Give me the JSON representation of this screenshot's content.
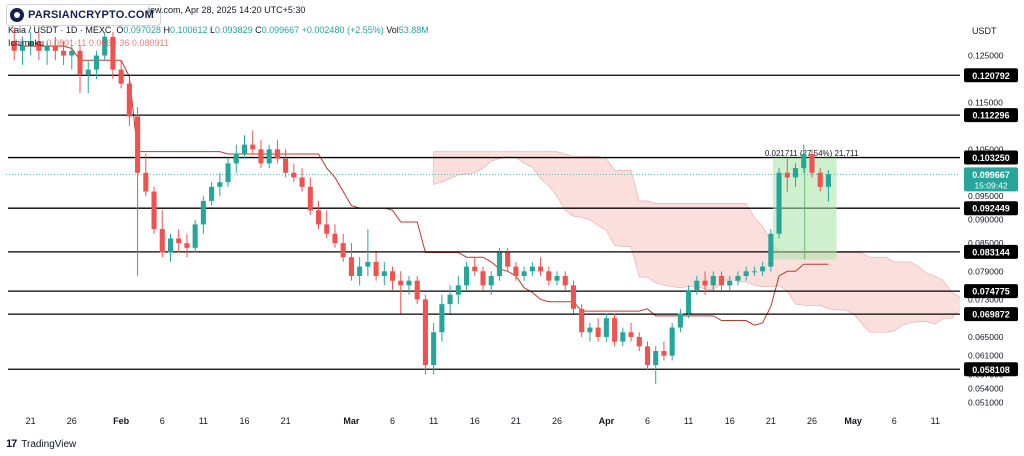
{
  "watermark": "PARSIANCRYPTO.COM",
  "header": {
    "published": "Apr 28, 2025 14:20 UTC+5:30",
    "site_fragment": "iew.com,",
    "symbol": "Kaia / USDT · 1D · MEXC",
    "ohlc": {
      "o_label": "O",
      "o": "0.097028",
      "h_label": "H",
      "h": "0.100612",
      "l_label": "L",
      "l": "0.093829",
      "c_label": "C",
      "c": "0.099667",
      "change": "+0.002480 (+2.55%)"
    },
    "vol_label": "Vol",
    "vol": "53.88M",
    "indicator": "Ichimoku",
    "indicator_values": "0.0801·11   0.0860·36   0.080911"
  },
  "axis": {
    "unit": "USDT",
    "y_ticks": [
      "0.125000",
      "0.115000",
      "0.105000",
      "0.095000",
      "0.090000",
      "0.085000",
      "0.079000",
      "0.073000",
      "0.065000",
      "0.061000",
      "0.057000",
      "0.054000",
      "0.051000"
    ],
    "x_ticks": [
      "21",
      "26",
      "Feb",
      "6",
      "11",
      "16",
      "21",
      "Mar",
      "6",
      "11",
      "16",
      "21",
      "26",
      "Apr",
      "6",
      "11",
      "16",
      "21",
      "26",
      "May",
      "6",
      "11"
    ]
  },
  "levels": [
    "0.120792",
    "0.112296",
    "0.103250",
    "0.092449",
    "0.083144",
    "0.074775",
    "0.069872",
    "0.058108"
  ],
  "current_price": "0.099667",
  "countdown": "15:09:42",
  "measure_label": "0.021711 (27.54%) 21,711",
  "footer": {
    "brand": "TradingView"
  },
  "colors": {
    "up": "#26a69a",
    "down": "#ef5350",
    "level": "#000000",
    "cloud": "#f9d4d2",
    "baseline": "#c0392b",
    "highlight": "#a5e4a7"
  },
  "chart_data": {
    "type": "candlestick",
    "symbol": "Kaia / USDT",
    "interval": "1D",
    "exchange": "MEXC",
    "ylabel": "USDT",
    "ylim": [
      0.049,
      0.133
    ],
    "levels": [
      0.120792,
      0.112296,
      0.10325,
      0.092449,
      0.083144,
      0.074775,
      0.069872,
      0.058108
    ],
    "x_range": [
      "2025-01-18",
      "2025-05-14"
    ],
    "candles": [
      [
        "2025-01-19",
        0.128,
        0.131,
        0.124,
        0.126
      ],
      [
        "2025-01-20",
        0.126,
        0.129,
        0.123,
        0.127
      ],
      [
        "2025-01-21",
        0.127,
        0.13,
        0.125,
        0.128
      ],
      [
        "2025-01-22",
        0.128,
        0.13,
        0.124,
        0.126
      ],
      [
        "2025-01-23",
        0.126,
        0.128,
        0.123,
        0.127
      ],
      [
        "2025-01-24",
        0.127,
        0.129,
        0.124,
        0.126
      ],
      [
        "2025-01-25",
        0.126,
        0.128,
        0.123,
        0.125
      ],
      [
        "2025-01-26",
        0.125,
        0.127,
        0.122,
        0.126
      ],
      [
        "2025-01-27",
        0.126,
        0.127,
        0.117,
        0.121
      ],
      [
        "2025-01-28",
        0.121,
        0.124,
        0.117,
        0.122
      ],
      [
        "2025-01-29",
        0.122,
        0.126,
        0.12,
        0.125
      ],
      [
        "2025-01-30",
        0.125,
        0.13,
        0.124,
        0.129
      ],
      [
        "2025-01-31",
        0.129,
        0.13,
        0.12,
        0.122
      ],
      [
        "2025-02-01",
        0.122,
        0.124,
        0.118,
        0.119
      ],
      [
        "2025-02-02",
        0.119,
        0.12,
        0.11,
        0.112
      ],
      [
        "2025-02-03",
        0.112,
        0.114,
        0.078,
        0.1
      ],
      [
        "2025-02-04",
        0.1,
        0.104,
        0.095,
        0.096
      ],
      [
        "2025-02-05",
        0.096,
        0.097,
        0.087,
        0.088
      ],
      [
        "2025-02-06",
        0.088,
        0.092,
        0.082,
        0.083
      ],
      [
        "2025-02-07",
        0.083,
        0.087,
        0.081,
        0.086
      ],
      [
        "2025-02-08",
        0.086,
        0.088,
        0.083,
        0.085
      ],
      [
        "2025-02-09",
        0.085,
        0.087,
        0.082,
        0.084
      ],
      [
        "2025-02-10",
        0.084,
        0.09,
        0.083,
        0.089
      ],
      [
        "2025-02-11",
        0.089,
        0.095,
        0.087,
        0.094
      ],
      [
        "2025-02-12",
        0.094,
        0.098,
        0.093,
        0.097
      ],
      [
        "2025-02-13",
        0.097,
        0.1,
        0.095,
        0.098
      ],
      [
        "2025-02-14",
        0.098,
        0.103,
        0.097,
        0.102
      ],
      [
        "2025-02-15",
        0.102,
        0.106,
        0.1,
        0.104
      ],
      [
        "2025-02-16",
        0.104,
        0.108,
        0.103,
        0.106
      ],
      [
        "2025-02-17",
        0.106,
        0.109,
        0.104,
        0.105
      ],
      [
        "2025-02-18",
        0.105,
        0.107,
        0.101,
        0.102
      ],
      [
        "2025-02-19",
        0.102,
        0.106,
        0.101,
        0.105
      ],
      [
        "2025-02-20",
        0.105,
        0.107,
        0.102,
        0.103
      ],
      [
        "2025-02-21",
        0.103,
        0.105,
        0.099,
        0.1
      ],
      [
        "2025-02-22",
        0.1,
        0.102,
        0.098,
        0.099
      ],
      [
        "2025-02-23",
        0.099,
        0.101,
        0.096,
        0.097
      ],
      [
        "2025-02-24",
        0.097,
        0.099,
        0.091,
        0.092
      ],
      [
        "2025-02-25",
        0.092,
        0.094,
        0.088,
        0.089
      ],
      [
        "2025-02-26",
        0.089,
        0.092,
        0.086,
        0.087
      ],
      [
        "2025-02-27",
        0.087,
        0.089,
        0.084,
        0.085
      ],
      [
        "2025-02-28",
        0.085,
        0.087,
        0.081,
        0.082
      ],
      [
        "2025-03-01",
        0.082,
        0.085,
        0.077,
        0.078
      ],
      [
        "2025-03-02",
        0.078,
        0.082,
        0.076,
        0.08
      ],
      [
        "2025-03-03",
        0.08,
        0.088,
        0.078,
        0.081
      ],
      [
        "2025-03-04",
        0.081,
        0.083,
        0.077,
        0.078
      ],
      [
        "2025-03-05",
        0.078,
        0.081,
        0.076,
        0.079
      ],
      [
        "2025-03-06",
        0.079,
        0.08,
        0.075,
        0.077
      ],
      [
        "2025-03-07",
        0.077,
        0.079,
        0.07,
        0.076
      ],
      [
        "2025-03-08",
        0.076,
        0.078,
        0.074,
        0.077
      ],
      [
        "2025-03-09",
        0.077,
        0.078,
        0.072,
        0.073
      ],
      [
        "2025-03-10",
        0.073,
        0.074,
        0.057,
        0.059
      ],
      [
        "2025-03-11",
        0.059,
        0.068,
        0.057,
        0.066
      ],
      [
        "2025-03-12",
        0.066,
        0.074,
        0.064,
        0.072
      ],
      [
        "2025-03-13",
        0.072,
        0.076,
        0.07,
        0.074
      ],
      [
        "2025-03-14",
        0.074,
        0.078,
        0.072,
        0.076
      ],
      [
        "2025-03-15",
        0.076,
        0.081,
        0.075,
        0.08
      ],
      [
        "2025-03-16",
        0.08,
        0.082,
        0.078,
        0.079
      ],
      [
        "2025-03-17",
        0.079,
        0.08,
        0.075,
        0.076
      ],
      [
        "2025-03-18",
        0.076,
        0.079,
        0.074,
        0.078
      ],
      [
        "2025-03-19",
        0.078,
        0.084,
        0.077,
        0.083
      ],
      [
        "2025-03-20",
        0.083,
        0.084,
        0.079,
        0.08
      ],
      [
        "2025-03-21",
        0.08,
        0.081,
        0.077,
        0.078
      ],
      [
        "2025-03-22",
        0.078,
        0.08,
        0.077,
        0.079
      ],
      [
        "2025-03-23",
        0.079,
        0.081,
        0.078,
        0.08
      ],
      [
        "2025-03-24",
        0.08,
        0.082,
        0.078,
        0.079
      ],
      [
        "2025-03-25",
        0.079,
        0.08,
        0.076,
        0.077
      ],
      [
        "2025-03-26",
        0.077,
        0.079,
        0.076,
        0.078
      ],
      [
        "2025-03-27",
        0.078,
        0.079,
        0.075,
        0.076
      ],
      [
        "2025-03-28",
        0.076,
        0.077,
        0.07,
        0.071
      ],
      [
        "2025-03-29",
        0.071,
        0.072,
        0.065,
        0.066
      ],
      [
        "2025-03-30",
        0.066,
        0.068,
        0.064,
        0.067
      ],
      [
        "2025-03-31",
        0.067,
        0.069,
        0.064,
        0.065
      ],
      [
        "2025-04-01",
        0.065,
        0.07,
        0.064,
        0.069
      ],
      [
        "2025-04-02",
        0.069,
        0.07,
        0.063,
        0.064
      ],
      [
        "2025-04-03",
        0.064,
        0.067,
        0.063,
        0.066
      ],
      [
        "2025-04-04",
        0.066,
        0.068,
        0.064,
        0.065
      ],
      [
        "2025-04-05",
        0.065,
        0.066,
        0.062,
        0.063
      ],
      [
        "2025-04-06",
        0.063,
        0.064,
        0.058,
        0.059
      ],
      [
        "2025-04-07",
        0.059,
        0.063,
        0.055,
        0.062
      ],
      [
        "2025-04-08",
        0.062,
        0.064,
        0.06,
        0.061
      ],
      [
        "2025-04-09",
        0.061,
        0.068,
        0.06,
        0.067
      ],
      [
        "2025-04-10",
        0.067,
        0.071,
        0.066,
        0.07
      ],
      [
        "2025-04-11",
        0.07,
        0.076,
        0.069,
        0.075
      ],
      [
        "2025-04-12",
        0.075,
        0.078,
        0.074,
        0.077
      ],
      [
        "2025-04-13",
        0.077,
        0.079,
        0.074,
        0.076
      ],
      [
        "2025-04-14",
        0.076,
        0.079,
        0.075,
        0.078
      ],
      [
        "2025-04-15",
        0.078,
        0.079,
        0.075,
        0.076
      ],
      [
        "2025-04-16",
        0.076,
        0.078,
        0.075,
        0.077
      ],
      [
        "2025-04-17",
        0.077,
        0.079,
        0.076,
        0.078
      ],
      [
        "2025-04-18",
        0.078,
        0.08,
        0.077,
        0.079
      ],
      [
        "2025-04-19",
        0.079,
        0.08,
        0.078,
        0.079
      ],
      [
        "2025-04-20",
        0.079,
        0.081,
        0.078,
        0.08
      ],
      [
        "2025-04-21",
        0.08,
        0.088,
        0.079,
        0.087
      ],
      [
        "2025-04-22",
        0.087,
        0.101,
        0.086,
        0.1
      ],
      [
        "2025-04-23",
        0.1,
        0.103,
        0.096,
        0.099
      ],
      [
        "2025-04-24",
        0.099,
        0.102,
        0.097,
        0.101
      ],
      [
        "2025-04-25",
        0.101,
        0.106,
        0.1,
        0.104
      ],
      [
        "2025-04-26",
        0.104,
        0.105,
        0.099,
        0.1
      ],
      [
        "2025-04-27",
        0.1,
        0.101,
        0.096,
        0.097
      ],
      [
        "2025-04-28",
        0.097,
        0.1006,
        0.0938,
        0.099667
      ]
    ]
  }
}
